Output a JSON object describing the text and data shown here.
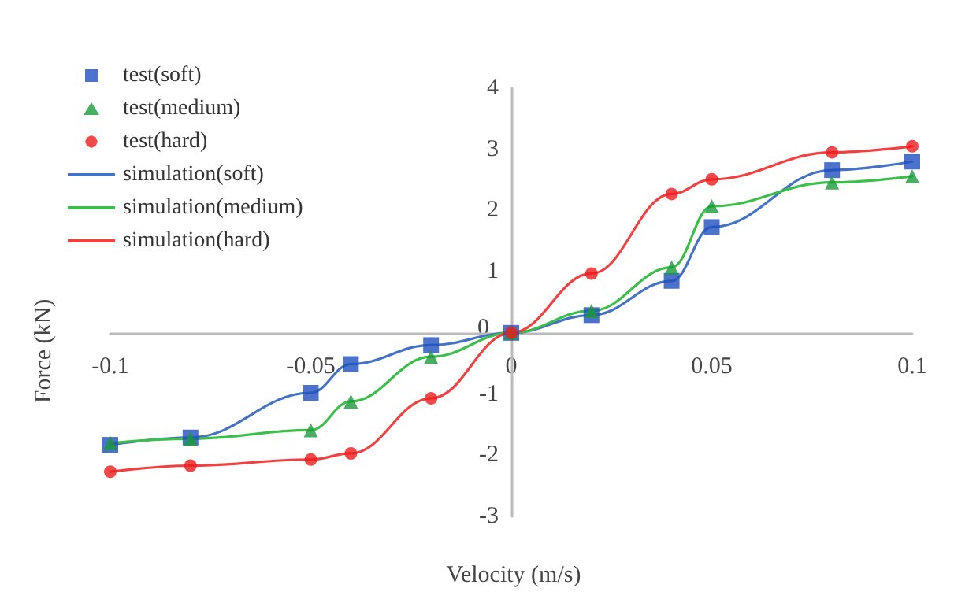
{
  "chart_data": {
    "type": "line",
    "xlabel": "Velocity (m/s)",
    "ylabel": "Force (kN)",
    "x": [
      -0.1,
      -0.08,
      -0.05,
      -0.04,
      -0.02,
      0,
      0.02,
      0.04,
      0.05,
      0.08,
      0.1
    ],
    "xlim": [
      -0.1,
      0.1
    ],
    "xticks": [
      -0.1,
      -0.05,
      0,
      0.05,
      0.1
    ],
    "ylim": [
      -3,
      4
    ],
    "yticks": [
      -3,
      -2,
      -1,
      0,
      1,
      2,
      3,
      4
    ],
    "grid": false,
    "legend": "top left",
    "line_style": "solid",
    "series": [
      {
        "name": "test(soft)",
        "type": "scatter",
        "marker": "square",
        "color": "#1f4fbf",
        "values": [
          -1.83,
          -1.71,
          -0.98,
          -0.51,
          -0.2,
          0,
          0.29,
          0.85,
          1.73,
          2.66,
          2.8
        ]
      },
      {
        "name": "test(medium)",
        "type": "scatter",
        "marker": "triangle",
        "color": "#1a9a3a",
        "values": [
          -1.8,
          -1.73,
          -1.59,
          -1.12,
          -0.39,
          0,
          0.36,
          1.07,
          2.07,
          2.46,
          2.56
        ]
      },
      {
        "name": "test(hard)",
        "type": "scatter",
        "marker": "circle",
        "color": "#ee1c1c",
        "values": [
          -2.27,
          -2.17,
          -2.07,
          -1.97,
          -1.07,
          0,
          0.97,
          2.27,
          2.51,
          2.95,
          3.05
        ]
      },
      {
        "name": "simulation(soft)",
        "type": "line",
        "marker": "none",
        "color": "#4472c4",
        "values": [
          -1.83,
          -1.71,
          -0.98,
          -0.51,
          -0.2,
          0,
          0.29,
          0.85,
          1.73,
          2.66,
          2.8
        ]
      },
      {
        "name": "simulation(medium)",
        "type": "line",
        "marker": "none",
        "color": "#3cbf4a",
        "values": [
          -1.8,
          -1.73,
          -1.59,
          -1.12,
          -0.39,
          0,
          0.36,
          1.07,
          2.07,
          2.46,
          2.56
        ]
      },
      {
        "name": "simulation(hard)",
        "type": "line",
        "marker": "none",
        "color": "#f04040",
        "values": [
          -2.27,
          -2.17,
          -2.07,
          -1.97,
          -1.07,
          0,
          0.97,
          2.27,
          2.51,
          2.95,
          3.05
        ]
      }
    ]
  }
}
